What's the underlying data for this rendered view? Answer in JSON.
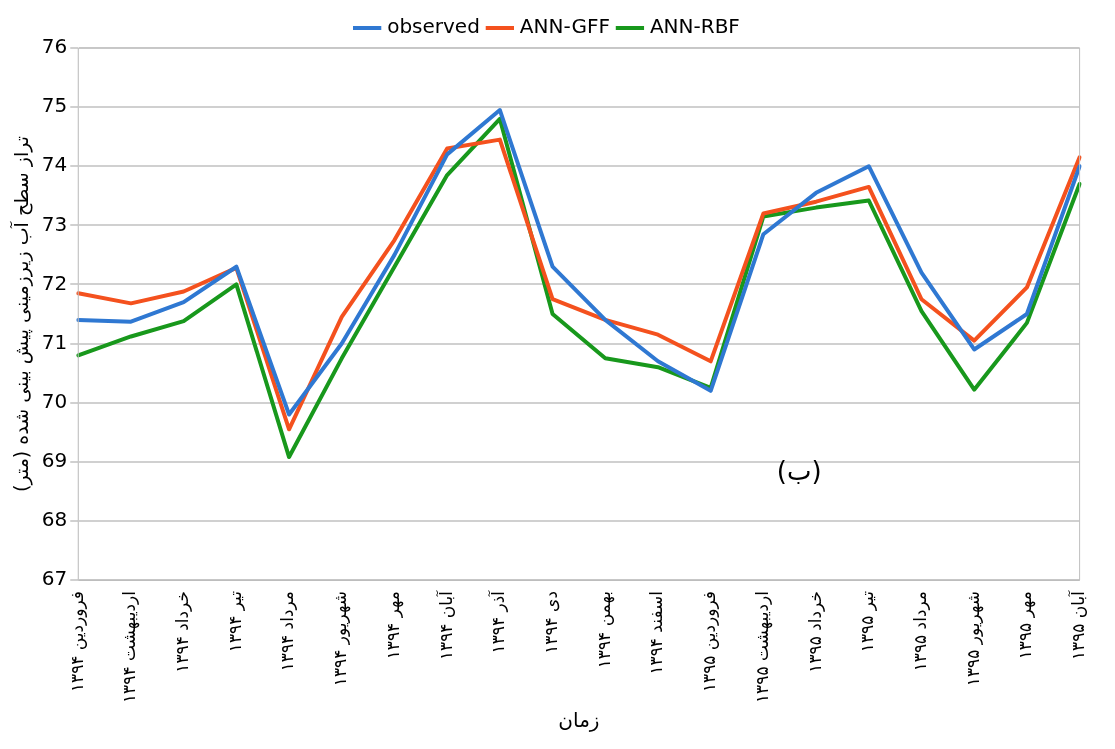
{
  "chart_data": {
    "type": "line",
    "categories": [
      "فروردین ۱۳۹۴",
      "اردیبهشت ۱۳۹۴",
      "خرداد ۱۳۹۴",
      "تیر ۱۳۹۴",
      "مرداد ۱۳۹۴",
      "شهریور ۱۳۹۴",
      "مهر ۱۳۹۴",
      "آبان ۱۳۹۴",
      "آذر ۱۳۹۴",
      "دی ۱۳۹۴",
      "بهمن ۱۳۹۴",
      "اسفند ۱۳۹۴",
      "فروردین ۱۳۹۵",
      "اردیبهشت ۱۳۹۵",
      "خرداد ۱۳۹۵",
      "تیر ۱۳۹۵",
      "مرداد ۱۳۹۵",
      "شهریور ۱۳۹۵",
      "مهر ۱۳۹۵",
      "آبان ۱۳۹۵"
    ],
    "series": [
      {
        "name": "observed",
        "color": "#2f78d2",
        "values": [
          71.4,
          71.37,
          71.7,
          72.3,
          69.8,
          71.0,
          72.5,
          74.2,
          74.95,
          72.3,
          71.4,
          70.7,
          70.2,
          72.85,
          73.55,
          74.0,
          72.2,
          70.9,
          71.5,
          74.0
        ]
      },
      {
        "name": "ANN-GFF",
        "color": "#f4511e",
        "values": [
          71.85,
          71.68,
          71.88,
          72.28,
          69.55,
          71.45,
          72.75,
          74.3,
          74.45,
          71.75,
          71.4,
          71.15,
          70.7,
          73.2,
          73.4,
          73.65,
          71.75,
          71.05,
          71.95,
          74.15
        ]
      },
      {
        "name": "ANN-RBF",
        "color": "#18981c",
        "values": [
          70.8,
          71.12,
          71.38,
          72.0,
          69.08,
          70.75,
          72.3,
          73.85,
          74.8,
          71.5,
          70.75,
          70.6,
          70.25,
          73.15,
          73.3,
          73.42,
          71.55,
          70.22,
          71.35,
          73.7
        ]
      }
    ],
    "ylim": [
      67,
      76
    ],
    "yticks": [
      67,
      68,
      69,
      70,
      71,
      72,
      73,
      74,
      75,
      76
    ],
    "ylabel": "تراز سطح آب زیرزمینی پیش بینی شده (متر)",
    "xlabel": "زمان",
    "annotations": [
      "(ب)"
    ],
    "grid": "y",
    "legend": "top",
    "marker": "none",
    "line_style": "solid"
  }
}
